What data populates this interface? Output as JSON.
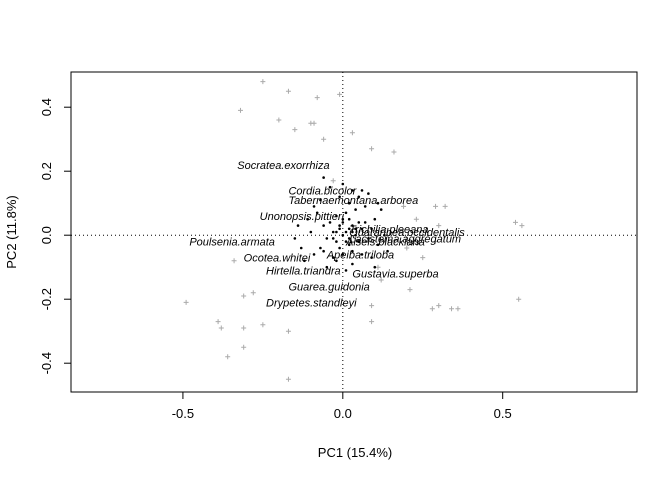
{
  "chart_data": {
    "type": "scatter",
    "title": "",
    "xlabel": "PC1 (15.4%)",
    "ylabel": "PC2 (11.8%)",
    "xlim": [
      -0.85,
      0.92
    ],
    "ylim": [
      -0.49,
      0.51
    ],
    "xticks": [
      -0.5,
      0.0,
      0.5
    ],
    "yticks": [
      -0.4,
      -0.2,
      0.0,
      0.2,
      0.4
    ],
    "xtick_labels": [
      "-0.5",
      "0.0",
      "0.5"
    ],
    "ytick_labels": [
      "-0.4",
      "-0.2",
      "0.0",
      "0.2",
      "0.4"
    ],
    "reference_lines": {
      "x": 0,
      "y": 0,
      "style": "dotted"
    },
    "site_color": "#aaaaaa",
    "species_color": "#000000",
    "sites": [
      [
        -0.25,
        0.48
      ],
      [
        -0.17,
        0.45
      ],
      [
        -0.08,
        0.43
      ],
      [
        -0.01,
        0.44
      ],
      [
        -0.32,
        0.39
      ],
      [
        -0.2,
        0.36
      ],
      [
        -0.15,
        0.33
      ],
      [
        -0.1,
        0.35
      ],
      [
        -0.09,
        0.35
      ],
      [
        -0.06,
        0.3
      ],
      [
        0.03,
        0.32
      ],
      [
        0.09,
        0.27
      ],
      [
        0.16,
        0.26
      ],
      [
        -0.03,
        0.17
      ],
      [
        0.19,
        0.09
      ],
      [
        0.29,
        0.09
      ],
      [
        0.32,
        0.09
      ],
      [
        0.23,
        0.05
      ],
      [
        0.54,
        0.04
      ],
      [
        0.56,
        0.03
      ],
      [
        0.3,
        0.03
      ],
      [
        0.25,
        0.0
      ],
      [
        0.29,
        -0.02
      ],
      [
        0.2,
        -0.04
      ],
      [
        0.25,
        -0.07
      ],
      [
        0.11,
        -0.1
      ],
      [
        -0.34,
        -0.08
      ],
      [
        0.12,
        -0.14
      ],
      [
        0.09,
        -0.22
      ],
      [
        0.21,
        -0.17
      ],
      [
        0.28,
        -0.23
      ],
      [
        0.3,
        -0.22
      ],
      [
        0.34,
        -0.23
      ],
      [
        0.36,
        -0.23
      ],
      [
        0.55,
        -0.2
      ],
      [
        0.09,
        -0.27
      ],
      [
        -0.49,
        -0.21
      ],
      [
        -0.31,
        -0.19
      ],
      [
        -0.28,
        -0.18
      ],
      [
        -0.39,
        -0.27
      ],
      [
        -0.38,
        -0.29
      ],
      [
        -0.25,
        -0.28
      ],
      [
        -0.31,
        -0.29
      ],
      [
        -0.17,
        -0.3
      ],
      [
        -0.31,
        -0.35
      ],
      [
        -0.36,
        -0.38
      ],
      [
        -0.17,
        -0.45
      ]
    ],
    "species_points": [
      [
        0.0,
        0.0
      ],
      [
        0.01,
        0.01
      ],
      [
        -0.01,
        0.02
      ],
      [
        0.02,
        -0.01
      ],
      [
        0.03,
        0.03
      ],
      [
        -0.02,
        -0.02
      ],
      [
        0.04,
        0.0
      ],
      [
        0.0,
        0.04
      ],
      [
        -0.03,
        0.01
      ],
      [
        0.02,
        0.05
      ],
      [
        0.05,
        -0.02
      ],
      [
        -0.01,
        -0.04
      ],
      [
        0.06,
        0.02
      ],
      [
        -0.04,
        0.04
      ],
      [
        0.03,
        -0.05
      ],
      [
        0.01,
        0.07
      ],
      [
        -0.05,
        -0.01
      ],
      [
        0.07,
        0.04
      ],
      [
        0.0,
        -0.06
      ],
      [
        -0.02,
        0.06
      ],
      [
        0.08,
        -0.01
      ],
      [
        -0.06,
        0.03
      ],
      [
        0.04,
        0.08
      ],
      [
        0.09,
        0.02
      ],
      [
        -0.07,
        -0.04
      ],
      [
        0.02,
        0.1
      ],
      [
        0.06,
        -0.06
      ],
      [
        -0.03,
        -0.07
      ],
      [
        0.1,
        0.05
      ],
      [
        -0.08,
        0.07
      ],
      [
        0.05,
        0.12
      ],
      [
        -0.01,
        0.12
      ],
      [
        0.11,
        -0.03
      ],
      [
        -0.09,
        -0.06
      ],
      [
        0.07,
        0.09
      ],
      [
        0.03,
        -0.09
      ],
      [
        -0.1,
        0.01
      ],
      [
        0.12,
        0.08
      ],
      [
        -0.05,
        -0.1
      ],
      [
        0.01,
        -0.11
      ],
      [
        0.13,
        0.0
      ],
      [
        -0.11,
        0.05
      ],
      [
        0.09,
        -0.07
      ],
      [
        -0.04,
        0.15
      ],
      [
        0.0,
        0.16
      ],
      [
        0.11,
        0.1
      ],
      [
        -0.12,
        -0.08
      ],
      [
        0.14,
        -0.05
      ],
      [
        0.06,
        0.14
      ],
      [
        -0.07,
        0.11
      ],
      [
        0.02,
        0.02
      ],
      [
        -0.02,
        0.01
      ],
      [
        0.01,
        -0.02
      ],
      [
        0.03,
        0.01
      ],
      [
        -0.01,
        0.03
      ],
      [
        0.02,
        -0.03
      ],
      [
        0.04,
        0.02
      ],
      [
        -0.03,
        -0.01
      ],
      [
        0.0,
        0.05
      ],
      [
        0.05,
        0.04
      ],
      [
        -0.14,
        0.03
      ],
      [
        -0.13,
        -0.04
      ],
      [
        -0.06,
        -0.05
      ],
      [
        -0.09,
        0.09
      ],
      [
        0.08,
        0.13
      ],
      [
        -0.06,
        0.18
      ],
      [
        0.03,
        0.14
      ],
      [
        -0.02,
        -0.08
      ],
      [
        0.1,
        -0.1
      ],
      [
        -0.15,
        -0.01
      ]
    ],
    "species_labels": [
      {
        "text": "Socratea.exorrhiza",
        "x": -0.33,
        "y": 0.22
      },
      {
        "text": "Cordia.bicolor",
        "x": -0.17,
        "y": 0.14
      },
      {
        "text": "Tabernaemontana.arborea",
        "x": -0.17,
        "y": 0.11
      },
      {
        "text": "Unonopsis.pittieri",
        "x": -0.26,
        "y": 0.06
      },
      {
        "text": "Poulsenia.armata",
        "x": -0.48,
        "y": -0.02
      },
      {
        "text": "Trichilia.pleeana",
        "x": 0.02,
        "y": 0.02
      },
      {
        "text": "Quararibea.occidentalis",
        "x": 0.02,
        "y": 0.01
      },
      {
        "text": "Lacistema.aggregatum",
        "x": 0.02,
        "y": -0.01
      },
      {
        "text": "Alseis.blackiana",
        "x": 0.01,
        "y": -0.02
      },
      {
        "text": "Apeiba.triloba",
        "x": -0.05,
        "y": -0.06
      },
      {
        "text": "Ocotea.whitei",
        "x": -0.31,
        "y": -0.07
      },
      {
        "text": "Hirtella.triandra",
        "x": -0.24,
        "y": -0.11
      },
      {
        "text": "Gustavia.superba",
        "x": 0.03,
        "y": -0.12
      },
      {
        "text": "Guarea.guidonia",
        "x": -0.17,
        "y": -0.16
      },
      {
        "text": "Drypetes.standleyi",
        "x": -0.24,
        "y": -0.21
      }
    ]
  }
}
